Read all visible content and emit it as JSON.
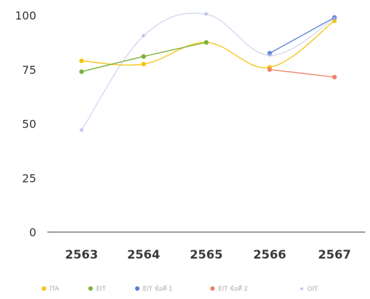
{
  "chart_data": {
    "type": "line",
    "categories": [
      "2563",
      "2564",
      "2565",
      "2566",
      "2567"
    ],
    "y_ticks": [
      "0",
      "25",
      "50",
      "75",
      "100"
    ],
    "ylim": [
      0,
      100
    ],
    "legend_position": "bottom",
    "grid": false,
    "series": [
      {
        "name": "ITA",
        "color": "#f5c515",
        "marker": "circle",
        "values": [
          79,
          77.5,
          87.5,
          76,
          97.5
        ]
      },
      {
        "name": "EIT",
        "color": "#7bb33a",
        "marker": "circle",
        "values": [
          74,
          81,
          87.5,
          null,
          null
        ]
      },
      {
        "name": "EIT ข้อที่ 1",
        "color": "#5b7fd6",
        "marker": "circle",
        "values": [
          null,
          null,
          null,
          82.5,
          99
        ]
      },
      {
        "name": "EIT ข้อที่ 2",
        "color": "#f0826a",
        "marker": "circle",
        "values": [
          null,
          null,
          null,
          75,
          71.5
        ]
      },
      {
        "name": "OIT",
        "color": "#a9b3e6",
        "marker": "star",
        "values": [
          47,
          90.5,
          100.5,
          81.5,
          98.5
        ]
      }
    ]
  }
}
